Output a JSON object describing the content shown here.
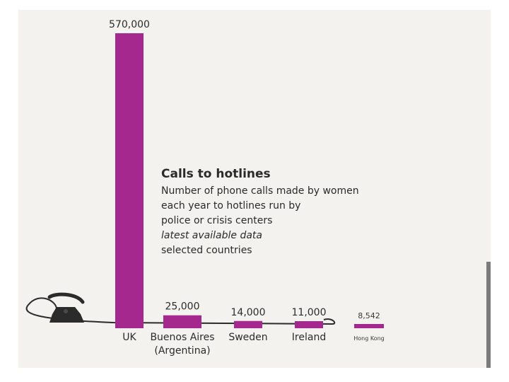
{
  "chart_data": {
    "type": "bar",
    "title": "Calls to hotlines",
    "subtitle_lines": [
      "Number of phone calls made by women",
      "each year to hotlines run by",
      "police or crisis centers"
    ],
    "note": "latest available data",
    "note2": "selected countries",
    "categories": [
      "UK",
      "Buenos Aires",
      "Sweden",
      "Ireland",
      "Hong Kong"
    ],
    "category_sublabels": [
      "",
      "(Argentina)",
      "",
      "",
      ""
    ],
    "values": [
      570000,
      25000,
      14000,
      11000,
      8542
    ],
    "value_labels": [
      "570,000",
      "25,000",
      "14,000",
      "11,000",
      "8,542"
    ],
    "ylim": [
      0,
      570000
    ],
    "xlabel": "",
    "ylabel": "",
    "bar_color": "#a5288f"
  },
  "colors": {
    "bar": "#a5288f",
    "paper": "#f3f2ee",
    "text": "#2c2c2c",
    "phone": "#2b2b2b"
  }
}
